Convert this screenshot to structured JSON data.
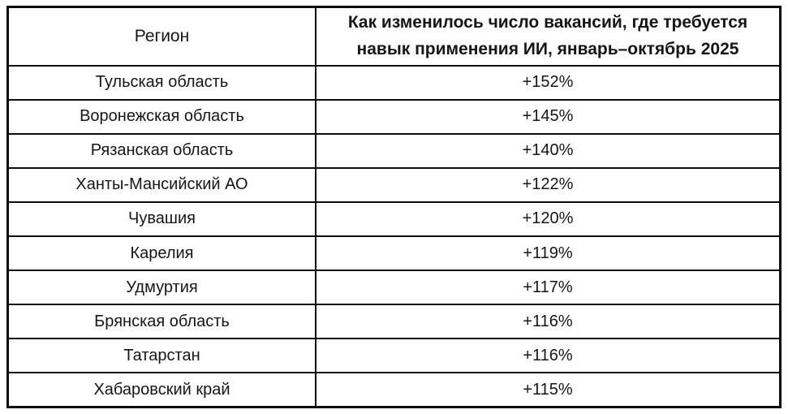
{
  "header": {
    "region_label": "Регион",
    "change_label": "Как изменилось число вакансий, где требуется\nнавык применения ИИ, январь–октябрь 2025"
  },
  "rows": [
    {
      "region": "Тульская область",
      "value": "+152%"
    },
    {
      "region": "Воронежская область",
      "value": "+145%"
    },
    {
      "region": "Рязанская область",
      "value": "+140%"
    },
    {
      "region": "Ханты-Мансийский АО",
      "value": "+122%"
    },
    {
      "region": "Чувашия",
      "value": "+120%"
    },
    {
      "region": "Карелия",
      "value": "+119%"
    },
    {
      "region": "Удмуртия",
      "value": "+117%"
    },
    {
      "region": "Брянская область",
      "value": "+116%"
    },
    {
      "region": "Татарстан",
      "value": "+116%"
    },
    {
      "region": "Хабаровский край",
      "value": "+115%"
    }
  ],
  "colors": {
    "background": "#ffffff",
    "border": "#0d0d0d",
    "text": "#161616"
  },
  "chart_data": {
    "type": "table",
    "title": "Как изменилось число вакансий, где требуется навык применения ИИ, январь–октябрь 2025",
    "columns": [
      "Регион",
      "Как изменилось число вакансий, где требуется навык применения ИИ, январь–октябрь 2025"
    ],
    "categories": [
      "Тульская область",
      "Воронежская область",
      "Рязанская область",
      "Ханты-Мансийский АО",
      "Чувашия",
      "Карелия",
      "Удмуртия",
      "Брянская область",
      "Татарстан",
      "Хабаровский край"
    ],
    "values": [
      152,
      145,
      140,
      122,
      120,
      119,
      117,
      116,
      116,
      115
    ],
    "value_unit": "%",
    "value_prefix": "+",
    "legend_position": "none",
    "grid": true
  }
}
